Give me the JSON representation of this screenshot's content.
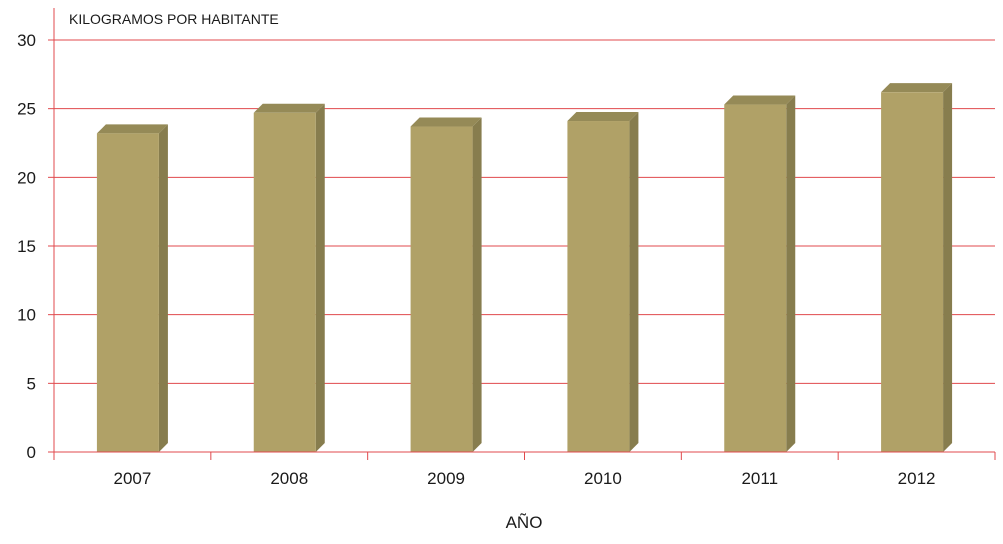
{
  "chart_data": {
    "type": "bar",
    "title": "",
    "ylabel": "KILOGRAMOS POR HABITANTE",
    "xlabel": "AÑO",
    "categories": [
      "2007",
      "2008",
      "2009",
      "2010",
      "2011",
      "2012"
    ],
    "values": [
      23.2,
      24.7,
      23.7,
      24.1,
      25.3,
      26.2
    ],
    "ylim": [
      0,
      30
    ],
    "yticks": [
      0,
      5,
      10,
      15,
      20,
      25,
      30
    ],
    "grid": true,
    "style": "3d-bar",
    "colors": {
      "bar_front": "#b0a167",
      "bar_side": "#877d4e",
      "bar_top": "#958a57",
      "grid": "#e0494d",
      "axis": "#e0494d"
    }
  }
}
